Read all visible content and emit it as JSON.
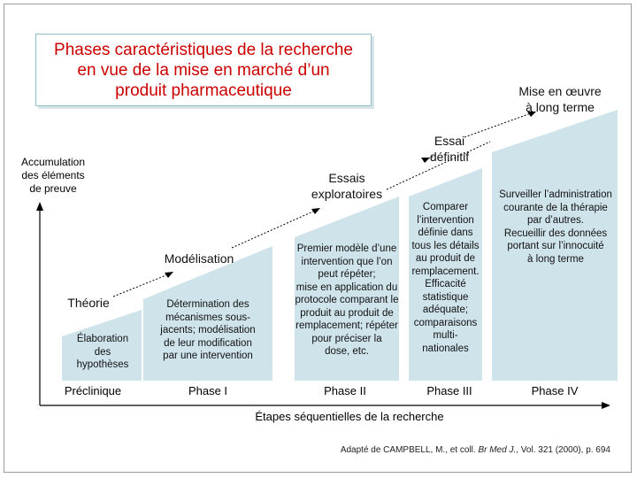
{
  "title": {
    "line1": "Phases caractéristiques de la recherche",
    "line2": "en vue de la mise en marché d’un",
    "line3": "produit pharmaceutique"
  },
  "y_axis_label": {
    "line1": "Accumulation",
    "line2": "des éléments",
    "line3": "de preuve"
  },
  "x_axis_label": "Étapes séquentielles de la recherche",
  "stages": {
    "theorie": "Théorie",
    "modelisation": "Modélisation",
    "essais_exploratoires": {
      "line1": "Essais",
      "line2": "exploratoires"
    },
    "essai_definitif": {
      "line1": "Essai",
      "line2": "définitif"
    },
    "mise_en_oeuvre": {
      "line1": "Mise en œuvre",
      "line2": "à long terme"
    }
  },
  "phases": [
    "Préclinique",
    "Phase I",
    "Phase II",
    "Phase III",
    "Phase IV"
  ],
  "descriptions": {
    "preclinique": [
      "Élaboration",
      "des",
      "hypothèses"
    ],
    "phase1": [
      "Détermination des",
      "mécanismes sous-",
      "jacents; modélisation",
      "de leur modification",
      "par une intervention"
    ],
    "phase2": [
      "Premier modèle d’une",
      "intervention que l’on",
      "peut répéter;",
      "mise en application du",
      "protocole comparant le",
      "produit au produit de",
      "remplacement; répéter",
      "pour préciser la",
      "dose, etc."
    ],
    "phase3": [
      "Comparer",
      "l’intervention",
      "définie dans",
      "tous les détails",
      "au produit de",
      "remplacement.",
      "Efficacité",
      "statistique",
      "adéquate;",
      "comparaisons",
      "multi-",
      "nationales"
    ],
    "phase4": [
      "Surveiller l’administration",
      "courante de la thérapie",
      "par d’autres.",
      "Recueillir des données",
      "portant sur l’innocuité",
      "à long terme"
    ]
  },
  "source": {
    "prefix": "Adapté de CAMPBELL, M., et coll. ",
    "journal": "Br Med J.",
    "suffix": ", Vol. 321 (2000), p. 694"
  },
  "colors": {
    "title": "#cc0000",
    "block_fill": "#cfe3ea",
    "arrow": "#000000"
  }
}
